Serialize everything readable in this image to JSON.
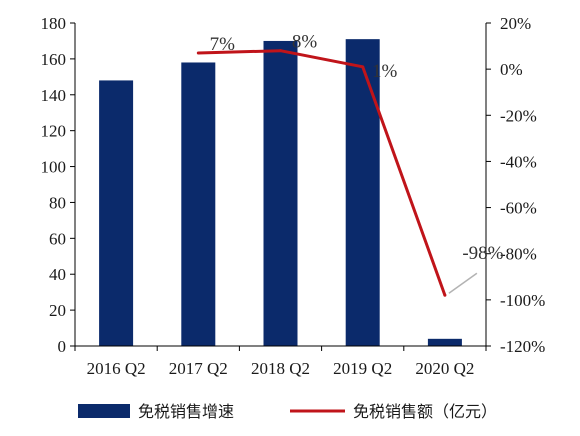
{
  "chart_data": {
    "type": "bar",
    "categories": [
      "2016 Q2",
      "2017 Q2",
      "2018 Q2",
      "2019 Q2",
      "2020 Q2"
    ],
    "series": [
      {
        "name": "免税销售增速",
        "type": "bar",
        "axis": "left",
        "values": [
          148,
          158,
          170,
          171,
          4
        ],
        "color": "#0b2a6b"
      },
      {
        "name": "免税销售额（亿元）",
        "type": "line",
        "axis": "right",
        "values": [
          null,
          0.07,
          0.08,
          0.01,
          -0.98
        ],
        "color": "#c0141a"
      }
    ],
    "data_labels": [
      "7%",
      "8%",
      "1%",
      "-98%"
    ],
    "y_left": {
      "lim": [
        0,
        180
      ],
      "ticks": [
        "0",
        "20",
        "40",
        "60",
        "80",
        "100",
        "120",
        "140",
        "160",
        "180"
      ]
    },
    "y_right": {
      "lim": [
        -1.2,
        0.2
      ],
      "ticks": [
        "20%",
        "0%",
        "-20%",
        "-40%",
        "-60%",
        "-80%",
        "-100%",
        "-120%"
      ]
    },
    "legend_position": "bottom",
    "grid": false
  }
}
